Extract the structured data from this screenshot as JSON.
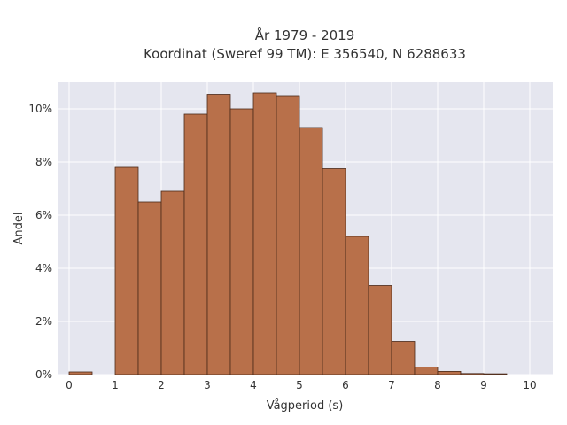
{
  "chart_data": {
    "type": "bar",
    "title_lines": [
      "År 1979 - 2019",
      "Koordinat (Sweref 99 TM): E 356540, N 6288633"
    ],
    "xlabel": "Vågperiod (s)",
    "ylabel": "Andel",
    "x_ticks": [
      "0",
      "1",
      "2",
      "3",
      "4",
      "5",
      "6",
      "7",
      "8",
      "9",
      "10"
    ],
    "y_ticks": [
      "0%",
      "2%",
      "4%",
      "6%",
      "8%",
      "10%"
    ],
    "xlim": [
      -0.25,
      10.5
    ],
    "ylim": [
      0,
      11
    ],
    "grid": true,
    "bin_width": 0.5,
    "bins": [
      {
        "x0": 0.0,
        "value": 0.1
      },
      {
        "x0": 0.5,
        "value": 0.0
      },
      {
        "x0": 1.0,
        "value": 7.8
      },
      {
        "x0": 1.5,
        "value": 6.5
      },
      {
        "x0": 2.0,
        "value": 6.9
      },
      {
        "x0": 2.5,
        "value": 9.8
      },
      {
        "x0": 3.0,
        "value": 10.55
      },
      {
        "x0": 3.5,
        "value": 10.0
      },
      {
        "x0": 4.0,
        "value": 10.6
      },
      {
        "x0": 4.5,
        "value": 10.5
      },
      {
        "x0": 5.0,
        "value": 9.3
      },
      {
        "x0": 5.5,
        "value": 7.75
      },
      {
        "x0": 6.0,
        "value": 5.2
      },
      {
        "x0": 6.5,
        "value": 3.35
      },
      {
        "x0": 7.0,
        "value": 1.25
      },
      {
        "x0": 7.5,
        "value": 0.28
      },
      {
        "x0": 8.0,
        "value": 0.12
      },
      {
        "x0": 8.5,
        "value": 0.04
      },
      {
        "x0": 9.0,
        "value": 0.03
      }
    ],
    "colors": {
      "bar_fill": "#b8704a",
      "bar_stroke": "#4a2a1a",
      "plot_bg": "#e5e6ef",
      "grid": "#ffffff"
    }
  }
}
